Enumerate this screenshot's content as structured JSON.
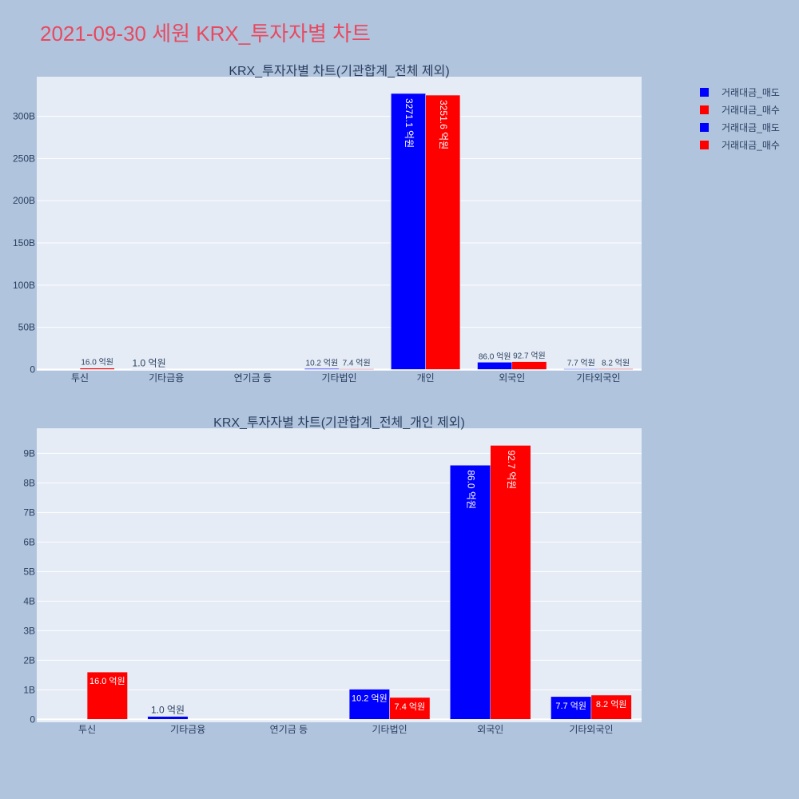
{
  "page": {
    "title": "2021-09-30 세원 KRX_투자자별 차트"
  },
  "legend": {
    "items": [
      {
        "label": "거래대금_매도",
        "color": "#0000ff"
      },
      {
        "label": "거래대금_매수",
        "color": "#ff0000"
      },
      {
        "label": "거래대금_매도",
        "color": "#0000ff"
      },
      {
        "label": "거래대금_매수",
        "color": "#ff0000"
      }
    ]
  },
  "chart_data": [
    {
      "type": "bar",
      "title": "KRX_투자자별 차트(기관합계_전체 제외)",
      "categories": [
        "투신",
        "기타금융",
        "연기금 등",
        "기타법인",
        "개인",
        "외국인",
        "기타외국인"
      ],
      "series": [
        {
          "name": "거래대금_매도",
          "color": "#0000ff",
          "values": [
            0,
            100000000,
            0,
            1020000000,
            327110000000,
            8600000000,
            770000000
          ],
          "labels": [
            "",
            "1.0 억원",
            "",
            "10.2 억원",
            "3271.1 억원",
            "86.0 억원",
            "7.7 억원"
          ]
        },
        {
          "name": "거래대금_매수",
          "color": "#ff0000",
          "values": [
            1600000000,
            0,
            0,
            740000000,
            325160000000,
            9270000000,
            820000000
          ],
          "labels": [
            "16.0 억원",
            "",
            "",
            "7.4 억원",
            "3251.6 억원",
            "92.7 억원",
            "8.2 억원"
          ]
        }
      ],
      "yticks": [
        0,
        50000000000,
        100000000000,
        150000000000,
        200000000000,
        250000000000,
        300000000000
      ],
      "ytick_labels": [
        "0",
        "50B",
        "100B",
        "150B",
        "200B",
        "250B",
        "300B"
      ],
      "ylim": [
        -1500000000,
        347000000000
      ],
      "grid": true
    },
    {
      "type": "bar",
      "title": "KRX_투자자별 차트(기관합계_전체_개인 제외)",
      "categories": [
        "투신",
        "기타금융",
        "연기금 등",
        "기타법인",
        "외국인",
        "기타외국인"
      ],
      "series": [
        {
          "name": "거래대금_매도",
          "color": "#0000ff",
          "values": [
            0,
            100000000,
            0,
            1020000000,
            8600000000,
            770000000
          ],
          "labels": [
            "",
            "1.0 억원",
            "",
            "10.2 억원",
            "86.0 억원",
            "7.7 억원"
          ]
        },
        {
          "name": "거래대금_매수",
          "color": "#ff0000",
          "values": [
            1600000000,
            0,
            0,
            740000000,
            9270000000,
            820000000
          ],
          "labels": [
            "16.0 억원",
            "",
            "",
            "7.4 억원",
            "92.7 억원",
            "8.2 억원"
          ]
        }
      ],
      "yticks": [
        0,
        1000000000,
        2000000000,
        3000000000,
        4000000000,
        5000000000,
        6000000000,
        7000000000,
        8000000000,
        9000000000
      ],
      "ytick_labels": [
        "0",
        "1B",
        "2B",
        "3B",
        "4B",
        "5B",
        "6B",
        "7B",
        "8B",
        "9B"
      ],
      "ylim": [
        -100000000,
        9850000000
      ],
      "grid": true
    }
  ]
}
